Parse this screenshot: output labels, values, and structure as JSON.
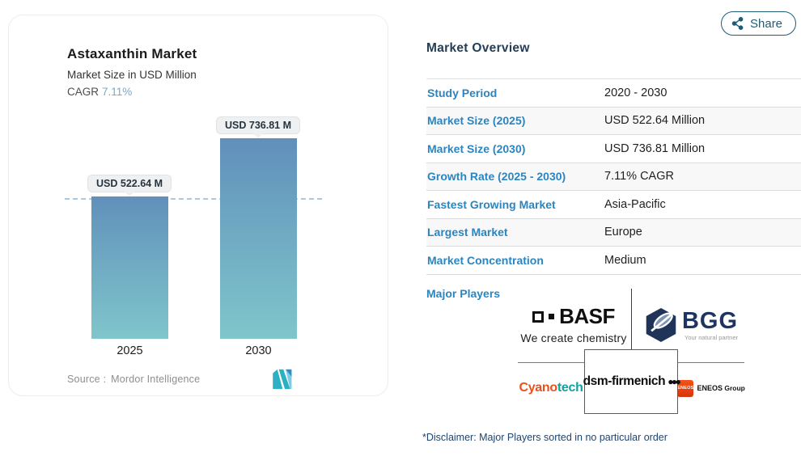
{
  "share": {
    "label": "Share"
  },
  "chart_card": {
    "title": "Astaxanthin Market",
    "subtitle": "Market Size in USD Million",
    "cagr_label": "CAGR",
    "cagr_value": "7.11%",
    "source_label": "Source :",
    "source_value": "Mordor Intelligence"
  },
  "chart_data": {
    "type": "bar",
    "title": "Astaxanthin Market",
    "ylabel": "Market Size in USD Million",
    "categories": [
      "2025",
      "2030"
    ],
    "values": [
      522.64,
      736.81
    ],
    "value_labels": [
      "USD 522.64 M",
      "USD 736.81 M"
    ],
    "ylim": [
      0,
      736.81
    ],
    "gridlines": false,
    "baseline": {
      "value": 522.64,
      "style": "dashed"
    },
    "bar_gradient_top": "#6190bb",
    "bar_gradient_bottom": "#7fc6cb",
    "dashed_line_color": "#a9c9e2"
  },
  "overview": {
    "heading": "Market Overview",
    "rows": [
      {
        "label": "Study Period",
        "value": "2020 - 2030"
      },
      {
        "label": "Market Size (2025)",
        "value": "USD 522.64 Million"
      },
      {
        "label": "Market Size (2030)",
        "value": "USD 736.81 Million"
      },
      {
        "label": "Growth Rate (2025 - 2030)",
        "value": "7.11% CAGR"
      },
      {
        "label": "Fastest Growing Market",
        "value": "Asia-Pacific"
      },
      {
        "label": "Largest Market",
        "value": "Europe"
      },
      {
        "label": "Market Concentration",
        "value": "Medium"
      }
    ],
    "major_players_label": "Major Players",
    "players": {
      "basf": {
        "name": "BASF",
        "tagline": "We create chemistry"
      },
      "bgg": {
        "name": "BGG",
        "tagline": "Your natural partner"
      },
      "cyanotech": {
        "part1": "Cyano",
        "part2": "tech"
      },
      "dsm": {
        "name": "dsm-firmenich",
        "dots": "●●●"
      },
      "eneos": {
        "badge": "ENEOS",
        "name": "ENEOS",
        "suffix": " Group"
      }
    }
  },
  "disclaimer": "*Disclaimer: Major Players sorted in no particular order",
  "colors": {
    "accent_blue": "#2a85c0",
    "navy_text": "#243e56",
    "share_teal": "#1d5d78",
    "cagr_value": "#75aacf",
    "source_gray": "#8e8e8e"
  }
}
